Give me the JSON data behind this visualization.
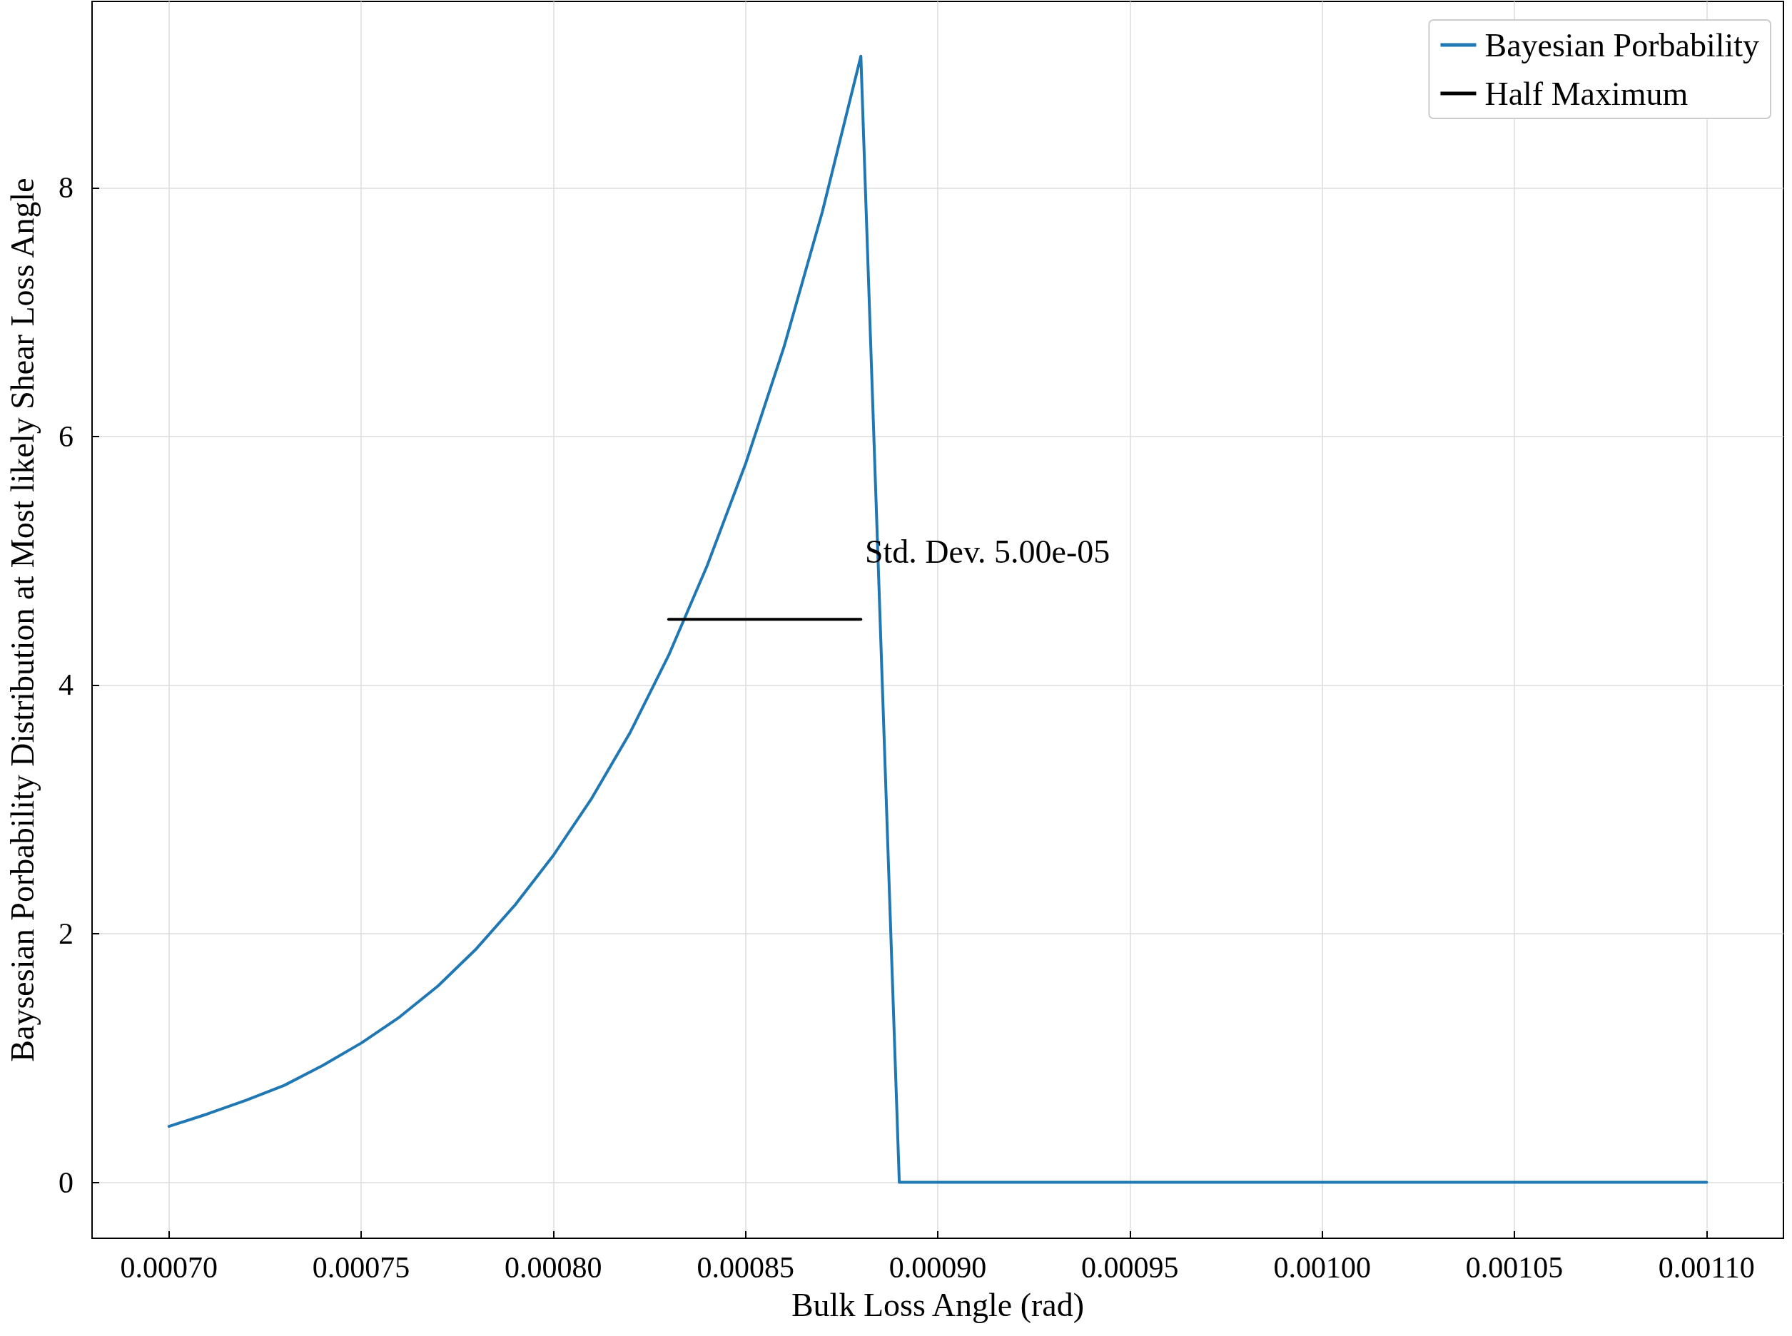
{
  "chart_data": {
    "type": "line",
    "xlabel": "Bulk Loss Angle (rad)",
    "ylabel": "Baysesian Porbability Distribution at Most likely Shear Loss Angle",
    "xlim": [
      0.00068,
      0.00112
    ],
    "ylim": [
      -0.45,
      9.5
    ],
    "xticks": [
      {
        "value": 0.0007,
        "label": "0.00070"
      },
      {
        "value": 0.00075,
        "label": "0.00075"
      },
      {
        "value": 0.0008,
        "label": "0.00080"
      },
      {
        "value": 0.00085,
        "label": "0.00085"
      },
      {
        "value": 0.0009,
        "label": "0.00090"
      },
      {
        "value": 0.00095,
        "label": "0.00095"
      },
      {
        "value": 0.001,
        "label": "0.00100"
      },
      {
        "value": 0.00105,
        "label": "0.00105"
      },
      {
        "value": 0.0011,
        "label": "0.00110"
      }
    ],
    "yticks": [
      0,
      2,
      4,
      6,
      8
    ],
    "grid": true,
    "legend": "top right",
    "line_style": "solid",
    "annotations": [
      "Std. Dev. 5.00e-05"
    ],
    "series": [
      {
        "name": "Bayesian Porbability",
        "color": "#1f77b4",
        "x": [
          0.0007,
          0.00071,
          0.00072,
          0.00073,
          0.00074,
          0.00075,
          0.00076,
          0.00077,
          0.00078,
          0.00079,
          0.0008,
          0.00081,
          0.00082,
          0.00083,
          0.00084,
          0.00085,
          0.00086,
          0.00087,
          0.00088,
          0.00089,
          0.0009,
          0.00091,
          0.00092,
          0.00093,
          0.00094,
          0.00095,
          0.00096,
          0.00097,
          0.00098,
          0.00099,
          0.001,
          0.00101,
          0.00102,
          0.00103,
          0.00104,
          0.00105,
          0.00106,
          0.00107,
          0.00108,
          0.00109,
          0.0011
        ],
        "values": [
          0.45,
          0.55,
          0.66,
          0.78,
          0.94,
          1.12,
          1.33,
          1.58,
          1.88,
          2.23,
          2.63,
          3.09,
          3.62,
          4.24,
          4.96,
          5.78,
          6.72,
          7.81,
          9.06,
          0,
          0,
          0,
          0,
          0,
          0,
          0,
          0,
          0,
          0,
          0,
          0,
          0,
          0,
          0,
          0,
          0,
          0,
          0,
          0,
          0,
          0
        ]
      },
      {
        "name": "Half Maximum",
        "color": "#000000",
        "x": [
          0.00083,
          0.00088
        ],
        "values": [
          4.53,
          4.53
        ]
      }
    ]
  }
}
